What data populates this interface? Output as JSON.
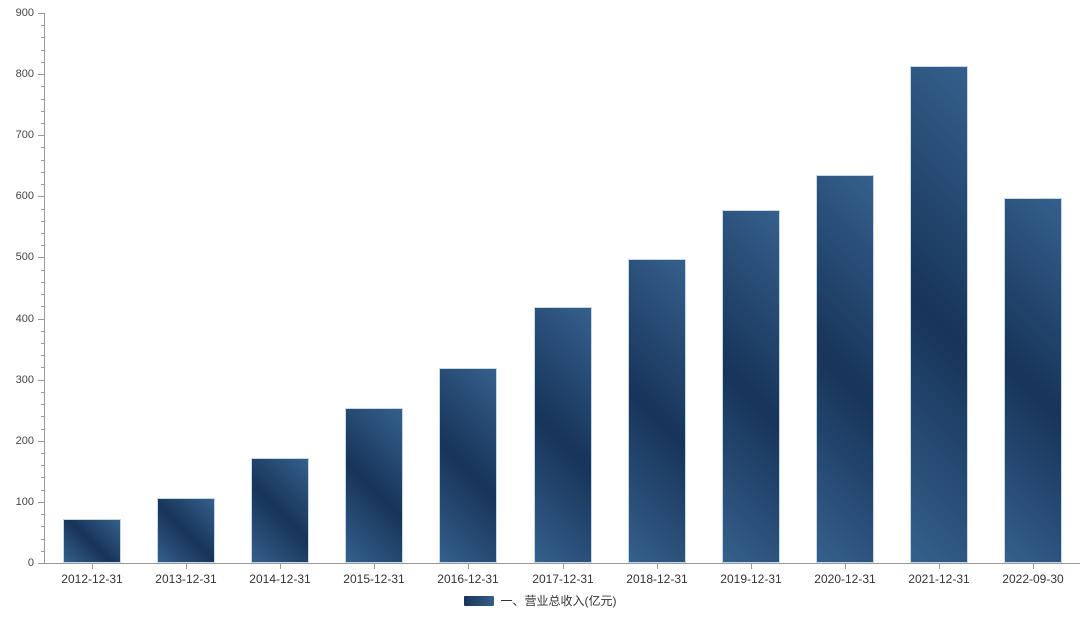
{
  "chart_data": {
    "type": "bar",
    "title": "",
    "xlabel": "",
    "ylabel": "",
    "categories": [
      "2012-12-31",
      "2013-12-31",
      "2014-12-31",
      "2015-12-31",
      "2016-12-31",
      "2017-12-31",
      "2018-12-31",
      "2019-12-31",
      "2020-12-31",
      "2021-12-31",
      "2022-09-30"
    ],
    "series": [
      {
        "name": "一、营业总收入(亿元)",
        "values": [
          72,
          107,
          172,
          253,
          319,
          419,
          498,
          577,
          635,
          814,
          597
        ]
      }
    ],
    "ylim": [
      0,
      900
    ],
    "y_tick_step": 100,
    "y_minor_tick_step": 20,
    "y_tick_labels": [
      "0",
      "100",
      "200",
      "300",
      "400",
      "500",
      "600",
      "700",
      "800",
      "900"
    ],
    "grid": false,
    "legend_position": "bottom",
    "colors": {
      "bar_gradient_dark": "#173459",
      "bar_gradient_light": "#35608c",
      "bar_border": "#d6e8f3",
      "axis": "#999999",
      "y_label": "#444444",
      "x_label": "#333333",
      "background": "#ffffff"
    }
  },
  "legend": {
    "label": "一、营业总收入(亿元)"
  }
}
